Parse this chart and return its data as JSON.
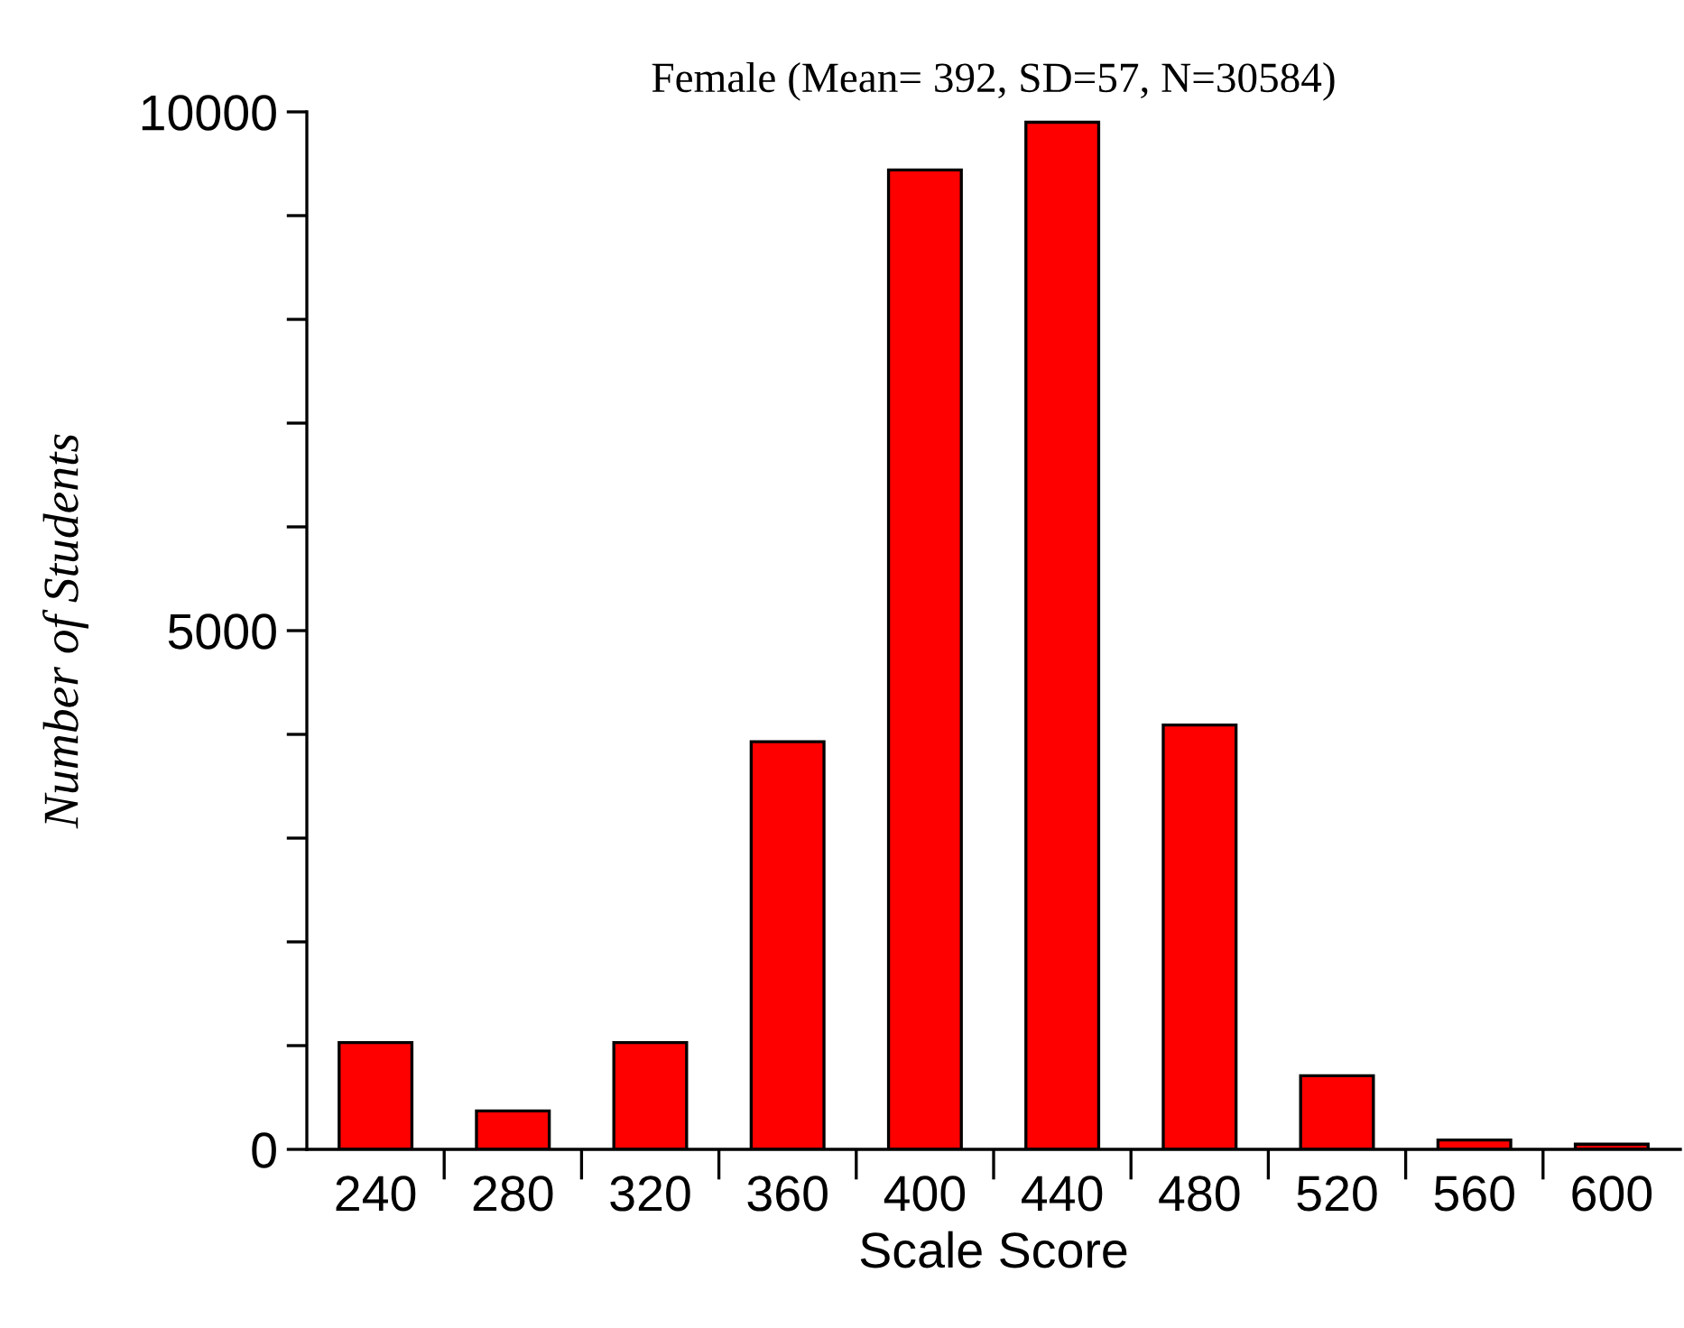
{
  "chart_data": {
    "type": "bar",
    "title": "Female (Mean= 392, SD=57, N=30584)",
    "xlabel": "Scale Score",
    "ylabel": "Number of Students",
    "categories": [
      "240",
      "280",
      "320",
      "360",
      "400",
      "440",
      "480",
      "520",
      "560",
      "600"
    ],
    "values": [
      1030,
      370,
      1030,
      3930,
      9440,
      9900,
      4090,
      710,
      90,
      50
    ],
    "color": "#ff0000",
    "ylim": [
      0,
      10000
    ],
    "yticks": [
      0,
      {
        "value": 1000,
        "label": null
      },
      {
        "value": 2000,
        "label": null
      },
      {
        "value": 3000,
        "label": null
      },
      {
        "value": 4000,
        "label": null
      },
      5000,
      {
        "value": 6000,
        "label": null
      },
      {
        "value": 7000,
        "label": null
      },
      {
        "value": 8000,
        "label": null
      },
      {
        "value": 9000,
        "label": null
      },
      10000
    ],
    "grid": false,
    "legend": false
  }
}
